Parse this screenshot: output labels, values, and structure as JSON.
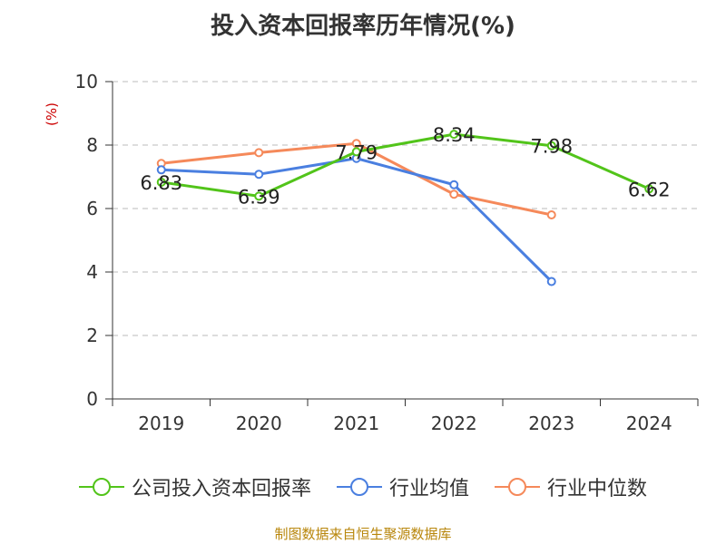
{
  "chart_data": {
    "type": "line",
    "title": "投入资本回报率历年情况(%)",
    "ylabel": "(%)",
    "ylim": [
      0,
      10
    ],
    "yticks": [
      0,
      2,
      4,
      6,
      8,
      10
    ],
    "grid": true,
    "legend_position": "bottom",
    "categories": [
      "2019",
      "2020",
      "2021",
      "2022",
      "2023",
      "2024"
    ],
    "series": [
      {
        "name": "公司投入资本回报率",
        "color": "#52c41a",
        "values": [
          6.83,
          6.39,
          7.79,
          8.34,
          7.98,
          6.62
        ],
        "labels": [
          "6.83",
          "6.39",
          "7.79",
          "8.34",
          "7.98",
          "6.62"
        ]
      },
      {
        "name": "行业均值",
        "color": "#4a7fe0",
        "values": [
          7.22,
          7.08,
          7.58,
          6.75,
          3.7,
          null
        ]
      },
      {
        "name": "行业中位数",
        "color": "#f5895a",
        "values": [
          7.42,
          7.76,
          8.05,
          6.45,
          5.8,
          null
        ]
      }
    ]
  },
  "source": "制图数据来自恒生聚源数据库",
  "colors": {
    "axis": "#333333",
    "grid": "#bbbbbb",
    "ylabel": "#cc0000",
    "source": "#b8860b"
  }
}
